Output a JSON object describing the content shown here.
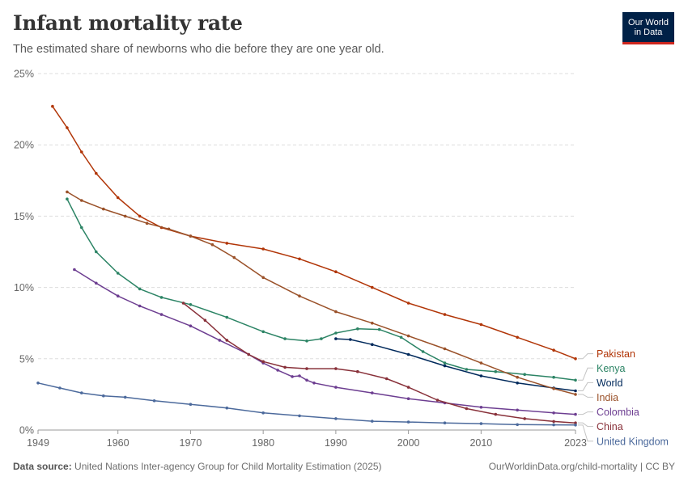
{
  "header": {
    "title": "Infant mortality rate",
    "subtitle": "The estimated share of newborns who die before they are one year old.",
    "logo_line1": "Our World",
    "logo_line2": "in Data"
  },
  "footer": {
    "source_label": "Data source:",
    "source_text": "United Nations Inter-agency Group for Child Mortality Estimation (2025)",
    "url_license": "OurWorldinData.org/child-mortality | CC BY"
  },
  "chart_data": {
    "type": "line",
    "title": "Infant mortality rate",
    "subtitle": "The estimated share of newborns who die before they are one year old.",
    "xlim": [
      1949,
      2023
    ],
    "ylim": [
      0,
      25
    ],
    "x_ticks": [
      1949,
      1960,
      1970,
      1980,
      1990,
      2000,
      2010,
      2023
    ],
    "y_ticks": [
      0,
      5,
      10,
      15,
      20,
      25
    ],
    "y_tick_suffix": "%",
    "grid": "horizontal dashed",
    "legend_placement": "right end-of-line labels",
    "series": [
      {
        "name": "Pakistan",
        "color": "#b13507",
        "x": [
          1951,
          1953,
          1955,
          1957,
          1960,
          1963,
          1966,
          1970,
          1975,
          1980,
          1985,
          1990,
          1995,
          2000,
          2005,
          2010,
          2015,
          2020,
          2023
        ],
        "values": [
          22.7,
          21.2,
          19.5,
          18.0,
          16.3,
          15.0,
          14.2,
          13.6,
          13.1,
          12.7,
          12.0,
          11.1,
          10.0,
          8.9,
          8.1,
          7.4,
          6.5,
          5.6,
          5.0
        ]
      },
      {
        "name": "Kenya",
        "color": "#2c8465",
        "x": [
          1953,
          1955,
          1957,
          1960,
          1963,
          1966,
          1970,
          1975,
          1980,
          1983,
          1986,
          1988,
          1990,
          1993,
          1996,
          1999,
          2002,
          2005,
          2008,
          2012,
          2016,
          2020,
          2023
        ],
        "values": [
          16.2,
          14.2,
          12.5,
          11.0,
          9.9,
          9.3,
          8.8,
          7.9,
          6.9,
          6.4,
          6.25,
          6.4,
          6.8,
          7.1,
          7.05,
          6.5,
          5.5,
          4.7,
          4.25,
          4.1,
          3.9,
          3.7,
          3.5
        ]
      },
      {
        "name": "World",
        "color": "#00295b",
        "x": [
          1990,
          1992,
          1995,
          2000,
          2005,
          2010,
          2015,
          2020,
          2023
        ],
        "values": [
          6.4,
          6.35,
          6.0,
          5.3,
          4.5,
          3.8,
          3.3,
          2.95,
          2.75
        ]
      },
      {
        "name": "India",
        "color": "#9a5129",
        "x": [
          1953,
          1955,
          1958,
          1961,
          1964,
          1967,
          1970,
          1973,
          1976,
          1980,
          1985,
          1990,
          1995,
          2000,
          2005,
          2010,
          2015,
          2020,
          2023
        ],
        "values": [
          16.7,
          16.1,
          15.5,
          15.0,
          14.5,
          14.1,
          13.6,
          13.0,
          12.1,
          10.7,
          9.4,
          8.3,
          7.5,
          6.6,
          5.7,
          4.7,
          3.7,
          2.9,
          2.5
        ]
      },
      {
        "name": "Colombia",
        "color": "#6d3e91",
        "x": [
          1954,
          1957,
          1960,
          1963,
          1966,
          1970,
          1974,
          1978,
          1980,
          1982,
          1984,
          1985,
          1986,
          1987,
          1990,
          1995,
          2000,
          2005,
          2010,
          2015,
          2020,
          2023
        ],
        "values": [
          11.25,
          10.3,
          9.4,
          8.7,
          8.1,
          7.3,
          6.3,
          5.3,
          4.7,
          4.2,
          3.75,
          3.8,
          3.5,
          3.3,
          3.0,
          2.6,
          2.2,
          1.9,
          1.6,
          1.4,
          1.2,
          1.1
        ]
      },
      {
        "name": "China",
        "color": "#883039",
        "x": [
          1969,
          1972,
          1975,
          1978,
          1980,
          1983,
          1986,
          1990,
          1993,
          1997,
          2000,
          2004,
          2008,
          2012,
          2016,
          2020,
          2023
        ],
        "values": [
          8.9,
          7.7,
          6.3,
          5.3,
          4.8,
          4.4,
          4.3,
          4.3,
          4.1,
          3.6,
          3.0,
          2.1,
          1.5,
          1.1,
          0.8,
          0.6,
          0.5
        ]
      },
      {
        "name": "United Kingdom",
        "color": "#4c6a9c",
        "x": [
          1949,
          1952,
          1955,
          1958,
          1961,
          1965,
          1970,
          1975,
          1980,
          1985,
          1990,
          1995,
          2000,
          2005,
          2010,
          2015,
          2020,
          2023
        ],
        "values": [
          3.3,
          2.95,
          2.6,
          2.4,
          2.3,
          2.05,
          1.8,
          1.55,
          1.2,
          1.0,
          0.8,
          0.62,
          0.56,
          0.5,
          0.45,
          0.38,
          0.36,
          0.35
        ]
      }
    ],
    "end_labels": [
      {
        "name": "Pakistan",
        "label_y": 5.35
      },
      {
        "name": "Kenya",
        "label_y": 4.35
      },
      {
        "name": "World",
        "label_y": 3.32
      },
      {
        "name": "India",
        "label_y": 2.3
      },
      {
        "name": "Colombia",
        "label_y": 1.27
      },
      {
        "name": "China",
        "label_y": 0.25
      },
      {
        "name": "United Kingdom",
        "label_y": -0.78
      }
    ]
  }
}
